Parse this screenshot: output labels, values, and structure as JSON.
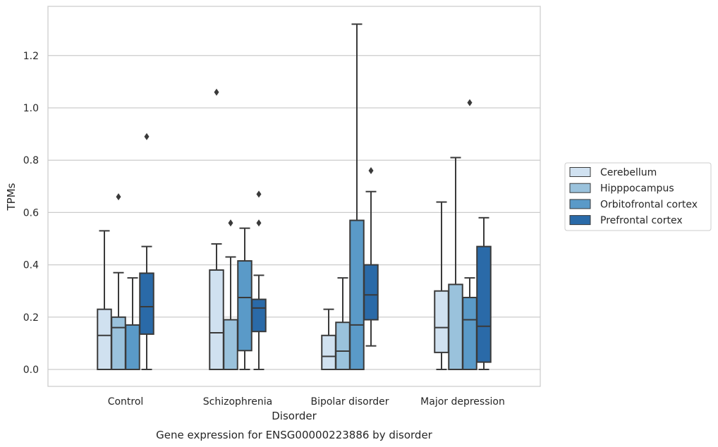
{
  "chart_data": {
    "type": "box",
    "caption": "Gene expression for ENSG00000223886 by disorder",
    "xlabel": "Disorder",
    "ylabel": "TPMs",
    "ylim": [
      -0.065,
      1.38
    ],
    "yticks": [
      "0.0",
      "0.2",
      "0.4",
      "0.6",
      "0.8",
      "1.0",
      "1.2"
    ],
    "categories": [
      "Control",
      "Schizophrenia",
      "Bipolar disorder",
      "Major depression"
    ],
    "grid": "horizontal",
    "legend_position": "right",
    "series": [
      {
        "name": "Cerebellum",
        "color": "#d0e1f0",
        "boxes": [
          {
            "whislo": 0.0,
            "q1": 0.0,
            "med": 0.13,
            "q3": 0.23,
            "whishi": 0.53,
            "fliers": []
          },
          {
            "whislo": 0.0,
            "q1": 0.0,
            "med": 0.14,
            "q3": 0.38,
            "whishi": 0.48,
            "fliers": [
              1.06
            ]
          },
          {
            "whislo": 0.0,
            "q1": 0.0,
            "med": 0.05,
            "q3": 0.13,
            "whishi": 0.23,
            "fliers": []
          },
          {
            "whislo": 0.0,
            "q1": 0.065,
            "med": 0.16,
            "q3": 0.3,
            "whishi": 0.64,
            "fliers": []
          }
        ]
      },
      {
        "name": "Hipppocampus",
        "color": "#9ac2dc",
        "boxes": [
          {
            "whislo": 0.0,
            "q1": 0.0,
            "med": 0.16,
            "q3": 0.2,
            "whishi": 0.37,
            "fliers": [
              0.66
            ]
          },
          {
            "whislo": 0.0,
            "q1": 0.0,
            "med": 0.0,
            "q3": 0.19,
            "whishi": 0.43,
            "fliers": [
              0.56
            ]
          },
          {
            "whislo": 0.0,
            "q1": 0.0,
            "med": 0.07,
            "q3": 0.18,
            "whishi": 0.35,
            "fliers": []
          },
          {
            "whislo": 0.0,
            "q1": 0.0,
            "med": 0.0,
            "q3": 0.325,
            "whishi": 0.81,
            "fliers": []
          }
        ]
      },
      {
        "name": "Orbitofrontal cortex",
        "color": "#5a9ac8",
        "boxes": [
          {
            "whislo": 0.0,
            "q1": 0.0,
            "med": 0.0,
            "q3": 0.17,
            "whishi": 0.35,
            "fliers": []
          },
          {
            "whislo": 0.0,
            "q1": 0.072,
            "med": 0.275,
            "q3": 0.415,
            "whishi": 0.54,
            "fliers": []
          },
          {
            "whislo": 0.0,
            "q1": 0.0,
            "med": 0.17,
            "q3": 0.57,
            "whishi": 1.32,
            "fliers": []
          },
          {
            "whislo": 0.0,
            "q1": 0.0,
            "med": 0.19,
            "q3": 0.275,
            "whishi": 0.35,
            "fliers": [
              1.02
            ]
          }
        ]
      },
      {
        "name": "Prefrontal cortex",
        "color": "#2a6aa8",
        "boxes": [
          {
            "whislo": 0.0,
            "q1": 0.135,
            "med": 0.24,
            "q3": 0.368,
            "whishi": 0.47,
            "fliers": [
              0.89
            ]
          },
          {
            "whislo": 0.0,
            "q1": 0.145,
            "med": 0.235,
            "q3": 0.268,
            "whishi": 0.36,
            "fliers": [
              0.56,
              0.67
            ]
          },
          {
            "whislo": 0.09,
            "q1": 0.19,
            "med": 0.285,
            "q3": 0.4,
            "whishi": 0.68,
            "fliers": [
              0.76
            ]
          },
          {
            "whislo": 0.0,
            "q1": 0.028,
            "med": 0.165,
            "q3": 0.47,
            "whishi": 0.58,
            "fliers": []
          }
        ]
      }
    ]
  }
}
